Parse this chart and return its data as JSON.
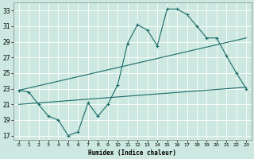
{
  "title": "",
  "xlabel": "Humidex (Indice chaleur)",
  "ylabel": "",
  "bg_color": "#cce8e0",
  "grid_color": "#b0d8d0",
  "line_color": "#1a6b68",
  "xlim": [
    -0.5,
    23.5
  ],
  "ylim": [
    16.5,
    34.0
  ],
  "xticks": [
    0,
    1,
    2,
    3,
    4,
    5,
    6,
    7,
    8,
    9,
    10,
    11,
    12,
    13,
    14,
    15,
    16,
    17,
    18,
    19,
    20,
    21,
    22,
    23
  ],
  "yticks": [
    17,
    19,
    21,
    23,
    25,
    27,
    29,
    31,
    33
  ],
  "curve1_x": [
    0,
    1,
    2,
    3,
    4,
    5,
    6,
    7,
    8,
    9,
    10,
    11,
    12,
    13,
    14,
    15,
    16,
    17,
    18,
    19,
    20,
    21,
    22,
    23
  ],
  "curve1_y": [
    22.8,
    22.6,
    21.0,
    19.5,
    19.0,
    17.0,
    17.5,
    21.2,
    19.5,
    21.0,
    23.5,
    28.8,
    31.2,
    30.5,
    28.5,
    33.2,
    33.2,
    32.5,
    31.0,
    29.5,
    29.5,
    27.2,
    25.0,
    23.0
  ],
  "line1_x": [
    0,
    23
  ],
  "line1_y": [
    22.8,
    29.5
  ],
  "line2_x": [
    0,
    23
  ],
  "line2_y": [
    21.0,
    23.2
  ],
  "figsize": [
    3.2,
    2.0
  ],
  "dpi": 100
}
